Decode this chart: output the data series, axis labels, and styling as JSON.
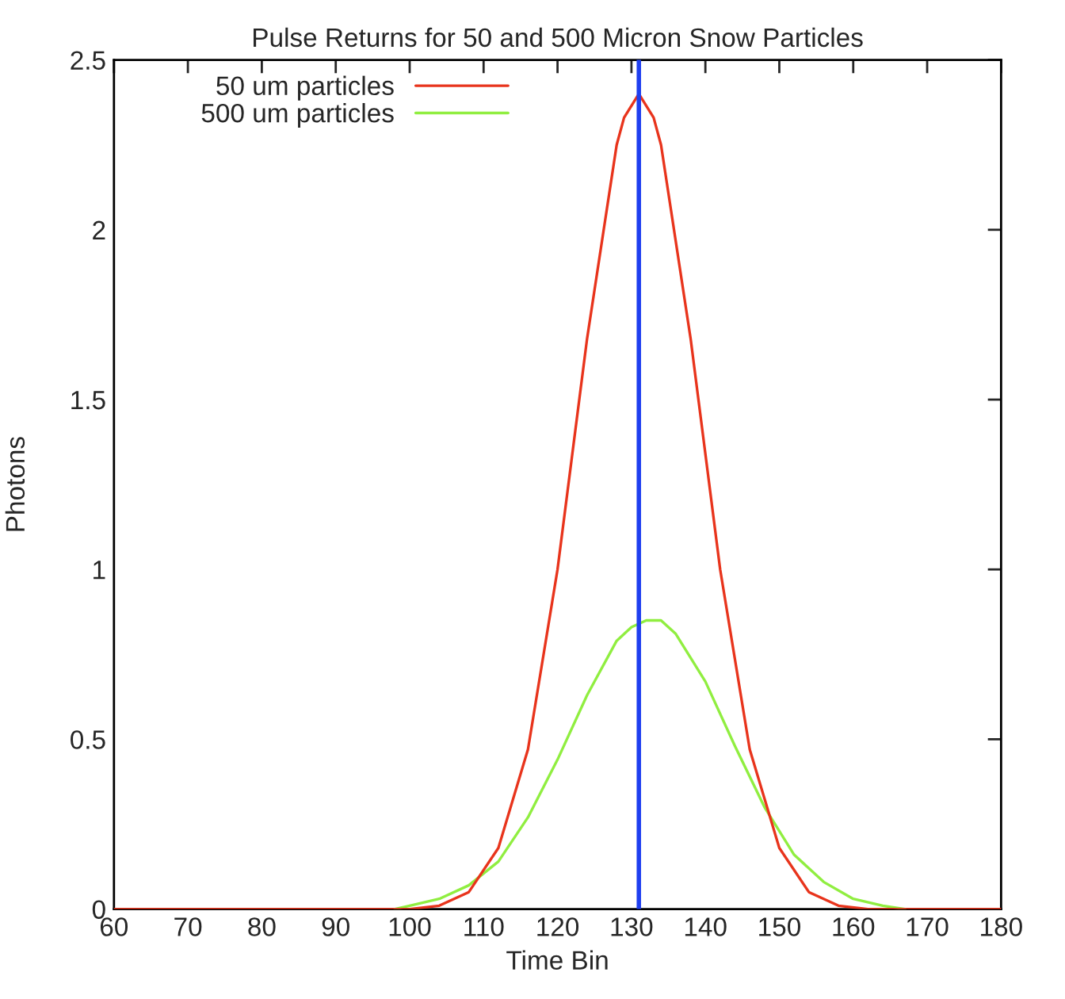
{
  "chart_data": {
    "type": "line",
    "title": "Pulse Returns for 50 and 500 Micron Snow Particles",
    "xlabel": "Time Bin",
    "ylabel": "Photons",
    "xlim": [
      60,
      180
    ],
    "xticks": [
      60,
      70,
      80,
      90,
      100,
      110,
      120,
      130,
      140,
      150,
      160,
      170,
      180
    ],
    "ylim": [
      0,
      2.5
    ],
    "yticks": [
      0,
      0.5,
      1,
      1.5,
      2,
      2.5
    ],
    "grid": false,
    "legend": "top left",
    "series": [
      {
        "name": "50 um particles",
        "color": "#e8341c",
        "x": [
          60,
          96,
          100,
          104,
          108,
          112,
          116,
          120,
          124,
          128,
          129,
          131,
          133,
          134,
          138,
          142,
          146,
          150,
          154,
          158,
          162,
          166,
          180
        ],
        "values": [
          0,
          0,
          0,
          0.01,
          0.05,
          0.18,
          0.47,
          1.0,
          1.68,
          2.25,
          2.33,
          2.4,
          2.33,
          2.25,
          1.68,
          1.0,
          0.47,
          0.18,
          0.05,
          0.01,
          0,
          0,
          0
        ]
      },
      {
        "name": "500 um particles",
        "color": "#90ee40",
        "x": [
          98,
          100,
          104,
          108,
          112,
          116,
          120,
          124,
          128,
          130,
          132,
          134,
          136,
          140,
          144,
          148,
          152,
          156,
          160,
          164,
          167
        ],
        "values": [
          0,
          0.01,
          0.03,
          0.07,
          0.14,
          0.27,
          0.44,
          0.63,
          0.79,
          0.83,
          0.85,
          0.85,
          0.81,
          0.67,
          0.48,
          0.3,
          0.16,
          0.08,
          0.03,
          0.01,
          0
        ]
      }
    ],
    "ref_lines": [
      {
        "axis": "x",
        "value": 131,
        "color": "#1f3ff0"
      }
    ]
  }
}
